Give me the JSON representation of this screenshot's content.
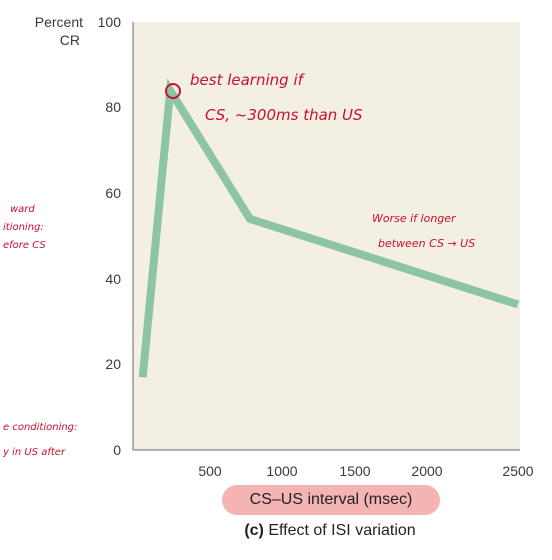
{
  "chart_data": {
    "type": "line",
    "title": "",
    "caption_label": "(c)",
    "caption_text": "Effect of ISI variation",
    "xlabel": "CS–US interval (msec)",
    "ylabel_line1": "Percent",
    "ylabel_line2": "CR",
    "xlim": [
      0,
      2500
    ],
    "ylim": [
      0,
      100
    ],
    "xticks": [
      "500",
      "1000",
      "1500",
      "2000",
      "2500"
    ],
    "yticks": [
      "0",
      "20",
      "40",
      "60",
      "80",
      "100"
    ],
    "series": [
      {
        "color": "#8cc4a4",
        "x": [
          50,
          230,
          750,
          2500
        ],
        "y": [
          17,
          84,
          54,
          34
        ]
      }
    ],
    "annotations": {
      "top_line1": "best learning if",
      "top_line2": "CS, ~300ms than US",
      "right_line1": "Worse if longer",
      "right_line2": "between CS → US",
      "left_line1": "ward",
      "left_line2": "itioning:",
      "left_line3": "efore CS",
      "bottom_line1": "e conditioning:",
      "bottom_line2": "y in US after"
    },
    "colors": {
      "plot_bg": "#f3efe3",
      "annotation": "#c8102e",
      "pill": "#f4b4b4"
    }
  }
}
